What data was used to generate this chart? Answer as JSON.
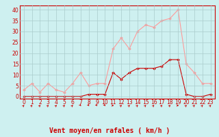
{
  "x": [
    0,
    1,
    2,
    3,
    4,
    5,
    6,
    7,
    8,
    9,
    10,
    11,
    12,
    13,
    14,
    15,
    16,
    17,
    18,
    19,
    20,
    21,
    22,
    23
  ],
  "rafales": [
    3,
    6,
    2,
    6,
    3,
    2,
    6,
    11,
    5,
    6,
    6,
    22,
    27,
    22,
    30,
    33,
    32,
    35,
    36,
    40,
    15,
    11,
    6,
    6
  ],
  "vent_moyen": [
    0,
    0,
    0,
    0,
    0,
    0,
    0,
    0,
    1,
    1,
    1,
    11,
    8,
    11,
    13,
    13,
    13,
    14,
    17,
    17,
    1,
    0,
    0,
    1
  ],
  "rafales_color": "#ff9999",
  "vent_moyen_color": "#cc0000",
  "background_color": "#cef0f0",
  "grid_color": "#aacccc",
  "xlabel": "Vent moyen/en rafales ( km/h )",
  "xlabel_color": "#cc0000",
  "yticks": [
    0,
    5,
    10,
    15,
    20,
    25,
    30,
    35,
    40
  ],
  "xticks": [
    0,
    1,
    2,
    3,
    4,
    5,
    6,
    7,
    8,
    9,
    10,
    11,
    12,
    13,
    14,
    15,
    16,
    17,
    18,
    19,
    20,
    21,
    22,
    23
  ],
  "ylim": [
    -1,
    42
  ],
  "xlim": [
    -0.5,
    23.5
  ],
  "markersize": 2.0,
  "linewidth": 0.8,
  "tick_fontsize": 5.5,
  "xlabel_fontsize": 7.0,
  "arrow_angles": [
    45,
    45,
    45,
    45,
    45,
    45,
    45,
    135,
    135,
    135,
    135,
    90,
    45,
    45,
    45,
    45,
    45,
    45,
    45,
    90,
    45,
    45,
    45,
    45
  ]
}
